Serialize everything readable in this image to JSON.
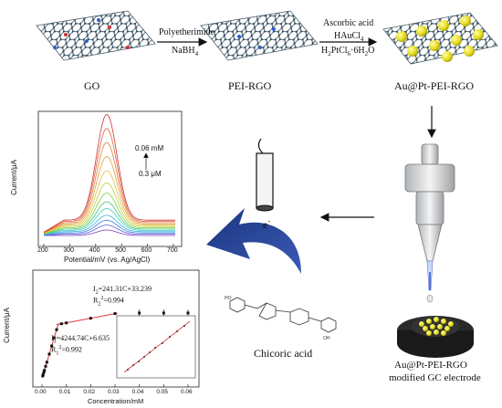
{
  "stages": {
    "go": "GO",
    "pei_rgo": "PEI-RGO",
    "au_pt": "Au@Pt-PEI-RGO"
  },
  "reagents": {
    "step1_line1": "Polyetherimide",
    "step1_line2": "NaBH",
    "step1_line2_sub": "4",
    "step2_line1": "Ascorbic acid",
    "step2_line2": "HAuCl",
    "step2_line2_sub": "4",
    "step2_line3_a": "H",
    "step2_line3_sub1": "2",
    "step2_line3_b": "PtCl",
    "step2_line3_sub2": "6",
    "step2_line3_c": "·6H",
    "step2_line3_sub3": "2",
    "step2_line3_d": "O"
  },
  "electrode_label_1": "Au@Pt-PEI-RGO",
  "electrode_label_2": "modified GC electrode",
  "analyte": "Chicoric acid",
  "electron": "e",
  "electron_sup": "-",
  "dpv_plot": {
    "ylabel": "Current/μA",
    "xlabel": "Potential/mV (vs. Ag/AgCl)",
    "xticks": [
      "200",
      "300",
      "400",
      "500",
      "600",
      "700"
    ],
    "ann_high": "0.06 mM",
    "ann_low": "0.3 μM"
  },
  "cal_plot": {
    "ylabel": "Current/μA",
    "xlabel": "Concentration/mM",
    "xticks": [
      "0.00",
      "0.01",
      "0.02",
      "0.03",
      "0.04",
      "0.05",
      "0.06"
    ],
    "eq1": "I",
    "eq1_sub": "2",
    "eq1_rest": "=241.31C+33.239",
    "r1": "R",
    "r1_sub": "2",
    "r1_sup": "2",
    "r1_rest": "=0.994",
    "eq2": "I",
    "eq2_sub": "1",
    "eq2_rest": "=4244.74C+6.635",
    "r2": "R",
    "r2_sub": "1",
    "r2_sup": "2",
    "r2_rest": "=0.992"
  },
  "colors": {
    "sheet_node": "#2e4a5c",
    "sheet_bond": "#4b5f6b",
    "gold": "#e8e020",
    "arrow_blue": "#23408e",
    "fit_red": "#e03a3a"
  }
}
